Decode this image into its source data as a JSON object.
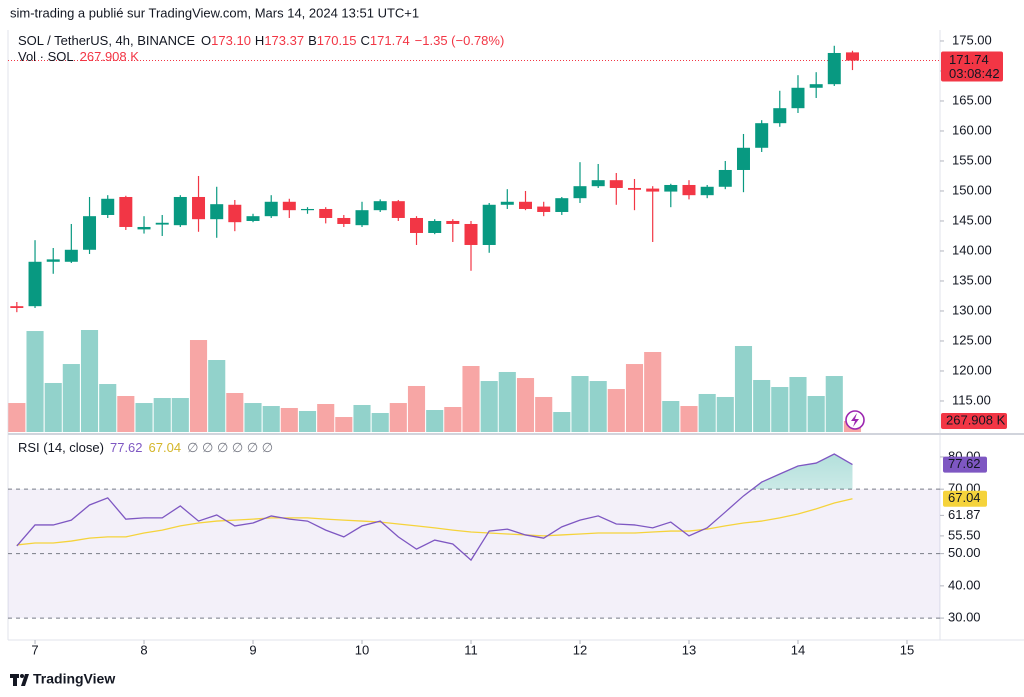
{
  "header": {
    "text": "sim-trading a publié sur TradingView.com, Mars 14, 2024 13:51 UTC+1"
  },
  "chart_data": [
    {
      "type": "candlestick",
      "title": "SOL / TetherUS, 4h, BINANCE",
      "ohlc_labels": [
        {
          "key": "O",
          "value": "173.10"
        },
        {
          "key": "H",
          "value": "173.37"
        },
        {
          "key": "B",
          "value": "170.15"
        },
        {
          "key": "C",
          "value": "171.74"
        }
      ],
      "change": "−1.35 (−0.78%)",
      "countdown": "03:08:42",
      "up_color": "#089981",
      "down_color": "#f23645",
      "x": [
        6.833,
        7,
        7.167,
        7.333,
        7.5,
        7.667,
        7.833,
        8,
        8.167,
        8.333,
        8.5,
        8.667,
        8.833,
        9,
        9.167,
        9.333,
        9.5,
        9.667,
        9.833,
        10,
        10.167,
        10.333,
        10.5,
        10.667,
        10.833,
        11,
        11.167,
        11.333,
        11.5,
        11.667,
        11.833,
        12,
        12.167,
        12.333,
        12.5,
        12.667,
        12.833,
        13,
        13.167,
        13.333,
        13.5,
        13.667,
        13.833,
        14,
        14.167,
        14.333,
        14.5
      ],
      "open": [
        130.8,
        130.8,
        138.2,
        138.2,
        140.2,
        146,
        149,
        143.6,
        144.4,
        144.3,
        149,
        145.3,
        147.7,
        145,
        145.8,
        148.2,
        146.8,
        147,
        145.5,
        144.3,
        146.8,
        148.3,
        145.5,
        143,
        145,
        144.5,
        141,
        147.7,
        148.2,
        147.4,
        146.5,
        148.8,
        150.8,
        151.8,
        150.5,
        150.4,
        149.9,
        151,
        149.3,
        150.7,
        153.5,
        157.2,
        161.3,
        163.8,
        167.2,
        167.8,
        173.1
      ],
      "high": [
        131.5,
        141.8,
        140.5,
        144.5,
        149,
        149.3,
        149.2,
        145.8,
        146,
        149.3,
        152.5,
        150.7,
        148.5,
        146.2,
        149.3,
        148.7,
        147.3,
        147.3,
        146,
        148.2,
        148.6,
        148.5,
        145.8,
        145.3,
        145.3,
        145,
        148,
        150.3,
        150,
        148.2,
        149,
        154.8,
        154.5,
        153,
        152,
        150.8,
        151.2,
        151.8,
        151,
        155,
        159.5,
        161.8,
        166.7,
        169.3,
        169.8,
        174.2,
        173.37
      ],
      "low": [
        129.8,
        130.5,
        136.2,
        138,
        139.5,
        145.5,
        143.5,
        142.9,
        142.5,
        144,
        143.2,
        142.2,
        143.3,
        144.8,
        145.5,
        145.5,
        146.2,
        144.6,
        144,
        144,
        146.5,
        145,
        141,
        142.8,
        141.5,
        136.7,
        139.7,
        147,
        146.8,
        145.8,
        146,
        148,
        150.5,
        147.7,
        146.8,
        141.5,
        147.3,
        148.6,
        148.8,
        150.3,
        149.8,
        156.5,
        160.7,
        163,
        165.5,
        167.5,
        170.15
      ],
      "close": [
        130.5,
        138.2,
        138.6,
        140.2,
        145.8,
        148.7,
        144,
        144,
        144.7,
        149,
        145.3,
        147.8,
        144.8,
        145.8,
        148.2,
        146.8,
        147,
        145.5,
        144.5,
        146.8,
        148.3,
        145.5,
        143,
        145,
        144.5,
        141,
        147.7,
        148.2,
        147,
        146.5,
        148.8,
        150.8,
        151.8,
        150.5,
        150.2,
        149.9,
        151,
        149.3,
        150.7,
        153.5,
        157.2,
        161.3,
        163.8,
        167.2,
        167.8,
        173,
        171.74
      ],
      "volume": {
        "name": "Vol · SOL",
        "value_label": "267.908 K",
        "up_color": "#92d2cb",
        "down_color": "#f7a6a5",
        "values": [
          706,
          2460,
          1194,
          1656,
          2485,
          1169,
          877,
          706,
          828,
          828,
          2241,
          1754,
          950,
          706,
          633,
          585,
          512,
          682,
          365,
          658,
          463,
          706,
          1121,
          536,
          609,
          1608,
          1242,
          1462,
          1315,
          853,
          487,
          1364,
          1242,
          1047,
          1656,
          1949,
          755,
          633,
          926,
          853,
          2095,
          1267,
          1096,
          1340,
          877,
          1364,
          267.908
        ]
      },
      "xlim": [
        6.752,
        15.303
      ],
      "xticks": [
        7,
        8,
        9,
        10,
        11,
        12,
        13,
        14,
        15
      ],
      "ylim": [
        109.83,
        176.83
      ],
      "yticks": [
        {
          "value": 175,
          "label": "175.00"
        },
        {
          "value": 170,
          "label": "170.00"
        },
        {
          "value": 165,
          "label": "165.00"
        },
        {
          "value": 160,
          "label": "160.00"
        },
        {
          "value": 155,
          "label": "155.00"
        },
        {
          "value": 150,
          "label": "150.00"
        },
        {
          "value": 145,
          "label": "145.00"
        },
        {
          "value": 140,
          "label": "140.00"
        },
        {
          "value": 135,
          "label": "135.00"
        },
        {
          "value": 130,
          "label": "130.00"
        },
        {
          "value": 125,
          "label": "125.00"
        },
        {
          "value": 120,
          "label": "120.00"
        },
        {
          "value": 115,
          "label": "115.00"
        }
      ],
      "last_price_line": true
    },
    {
      "type": "line",
      "title": "RSI (14, close)",
      "na_markers": "∅ ∅ ∅ ∅ ∅ ∅",
      "x": [
        6.833,
        7,
        7.167,
        7.333,
        7.5,
        7.667,
        7.833,
        8,
        8.167,
        8.333,
        8.5,
        8.667,
        8.833,
        9,
        9.167,
        9.333,
        9.5,
        9.667,
        9.833,
        10,
        10.167,
        10.333,
        10.5,
        10.667,
        10.833,
        11,
        11.167,
        11.333,
        11.5,
        11.667,
        11.833,
        12,
        12.167,
        12.333,
        12.5,
        12.667,
        12.833,
        13,
        13.167,
        13.333,
        13.5,
        13.667,
        13.833,
        14,
        14.167,
        14.333,
        14.5
      ],
      "series": [
        {
          "color": "#7e57c2",
          "values": [
            52.4,
            58.9,
            58.9,
            60.4,
            65.1,
            67.3,
            60.7,
            61.1,
            61.1,
            64.8,
            60.1,
            62,
            58.6,
            59.5,
            61.7,
            60.7,
            60.1,
            57.3,
            55.2,
            58.6,
            60.1,
            55.2,
            51.4,
            54.2,
            53,
            48,
            57,
            57.6,
            55.8,
            54.8,
            58.3,
            60.4,
            61.7,
            59.2,
            58.9,
            58,
            59.8,
            55.5,
            58,
            62.9,
            67.9,
            72.2,
            74.7,
            77.2,
            78.1,
            80.9,
            77.62
          ]
        },
        {
          "color": "#f5d33b",
          "values": [
            52.7,
            53.3,
            53.3,
            53.9,
            54.8,
            55.2,
            55.2,
            56.4,
            57.3,
            58.6,
            59.5,
            60.1,
            60.4,
            60.7,
            61.1,
            61.1,
            61.1,
            60.7,
            60.4,
            60.1,
            59.8,
            59.2,
            58.6,
            58,
            57.3,
            56.7,
            56.4,
            56.1,
            55.8,
            55.5,
            55.8,
            56.1,
            56.4,
            56.4,
            56.4,
            56.7,
            57,
            57,
            57.6,
            58.6,
            59.5,
            60.1,
            61.1,
            62.3,
            63.9,
            65.7,
            67.04
          ]
        }
      ],
      "bands": [
        70,
        50,
        30
      ],
      "band_fill": [
        30,
        70
      ],
      "band_color": "#7e57c2",
      "overbought_color": "#26a69a",
      "xlim": [
        6.752,
        15.303
      ],
      "ylim": [
        23.2,
        86.5
      ],
      "yticks": [
        {
          "value": 80,
          "label": "80.00"
        },
        {
          "value": 70,
          "label": "70.00"
        },
        {
          "value": 61.87,
          "label": "61.87"
        },
        {
          "value": 55.5,
          "label": "55.50"
        },
        {
          "value": 50,
          "label": "50.00"
        },
        {
          "value": 40,
          "label": "40.00"
        },
        {
          "value": 30,
          "label": "30.00"
        }
      ]
    }
  ],
  "footer": {
    "brand": "TradingView"
  }
}
